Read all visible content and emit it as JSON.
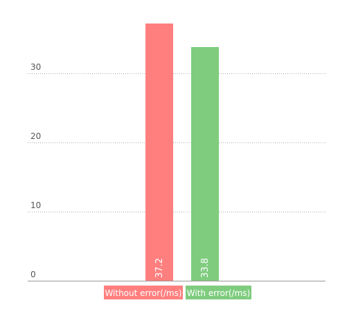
{
  "chart_data": {
    "type": "bar",
    "categories": [
      "Without error(/ms)",
      "With error(/ms)"
    ],
    "values": [
      37.2,
      33.8
    ],
    "data_labels": [
      "37.2",
      "33.8"
    ],
    "colors": [
      "#ff7f7f",
      "#7fcc7f"
    ],
    "y_ticks": [
      "0",
      "10",
      "20",
      "30"
    ],
    "ylim": [
      0,
      37.2
    ],
    "grid": true,
    "legend": {
      "placement": "bottom",
      "items": [
        "Without error(/ms)",
        "With error(/ms)"
      ]
    },
    "title": "",
    "xlabel": "",
    "ylabel": ""
  }
}
